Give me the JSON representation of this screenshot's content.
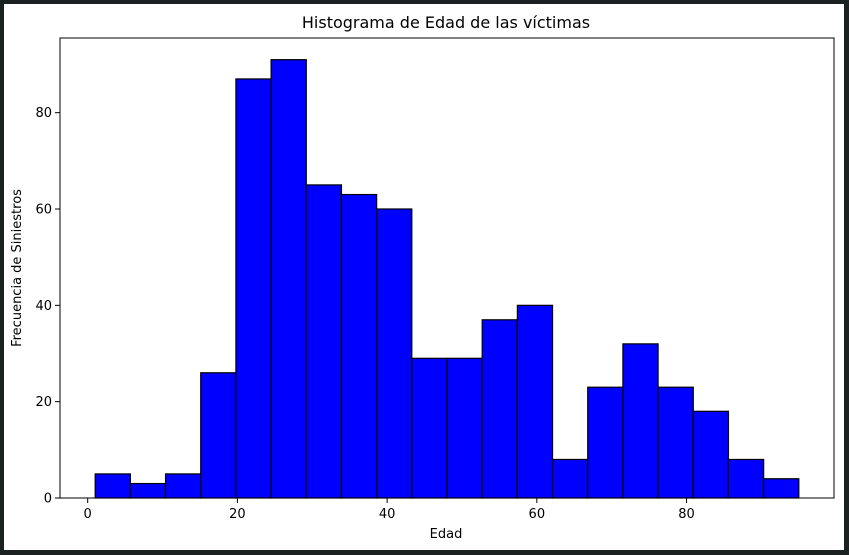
{
  "chart_data": {
    "type": "bar",
    "title": "Histograma de Edad de las víctimas",
    "xlabel": "Edad",
    "ylabel": "Frecuencia de Siniestros",
    "xlim": [
      -3.7,
      99.7
    ],
    "ylim": [
      0,
      95.5
    ],
    "xticks": [
      0,
      20,
      40,
      60,
      80
    ],
    "yticks": [
      0,
      20,
      40,
      60,
      80
    ],
    "bin_edges": [
      1,
      5.7,
      10.4,
      15.1,
      19.8,
      24.5,
      29.2,
      33.9,
      38.6,
      43.3,
      48.0,
      52.7,
      57.4,
      62.1,
      66.8,
      71.5,
      76.2,
      80.9,
      85.6,
      90.3,
      95
    ],
    "values": [
      5,
      3,
      5,
      26,
      87,
      91,
      65,
      63,
      60,
      29,
      29,
      37,
      40,
      8,
      23,
      32,
      23,
      18,
      8,
      4
    ],
    "bar_color": "#0000ff",
    "edge_color": "#000000",
    "grid": false
  }
}
